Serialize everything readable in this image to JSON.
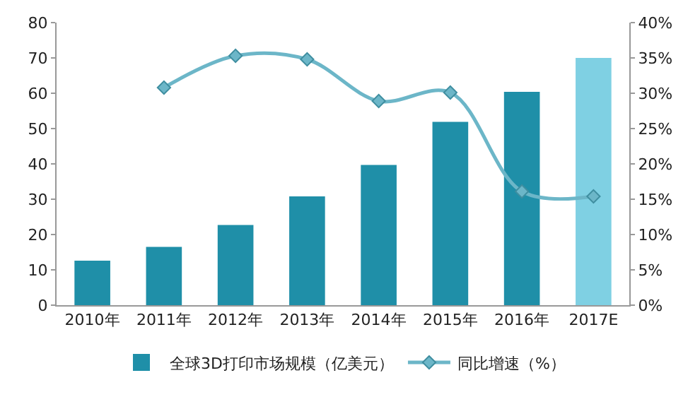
{
  "chart_data": {
    "type": "bar",
    "categories": [
      "2010年",
      "2011年",
      "2012年",
      "2013年",
      "2014年",
      "2015年",
      "2016年",
      "2017E"
    ],
    "series": [
      {
        "name": "全球3D打印市场规模（亿美元）",
        "color": "#1f8fa8",
        "colors": [
          "#1f8fa8",
          "#1f8fa8",
          "#1f8fa8",
          "#1f8fa8",
          "#1f8fa8",
          "#1f8fa8",
          "#1f8fa8",
          "#7fd0e3"
        ],
        "values": [
          12.6,
          16.5,
          22.7,
          30.8,
          39.7,
          51.9,
          60.4,
          70
        ]
      },
      {
        "name": "同比增速（%）",
        "type": "line",
        "axis": "y2",
        "color": "#6cb6c8",
        "marker": "diamond",
        "values": [
          null,
          30.8,
          35.3,
          34.8,
          28.9,
          30.1,
          16.1,
          15.4
        ]
      }
    ],
    "ylim": [
      0,
      80
    ],
    "yticks": [
      0,
      10,
      20,
      30,
      40,
      50,
      60,
      70,
      80
    ],
    "y2lim": [
      0,
      40
    ],
    "y2ticks": [
      {
        "value": 0,
        "label": "0%"
      },
      {
        "value": 5,
        "label": "5%"
      },
      {
        "value": 10,
        "label": "10%"
      },
      {
        "value": 15,
        "label": "15%"
      },
      {
        "value": 20,
        "label": "20%"
      },
      {
        "value": 25,
        "label": "25%"
      },
      {
        "value": 30,
        "label": "30%"
      },
      {
        "value": 35,
        "label": "35%"
      },
      {
        "value": 40,
        "label": "40%"
      }
    ],
    "legend": "bottom"
  }
}
